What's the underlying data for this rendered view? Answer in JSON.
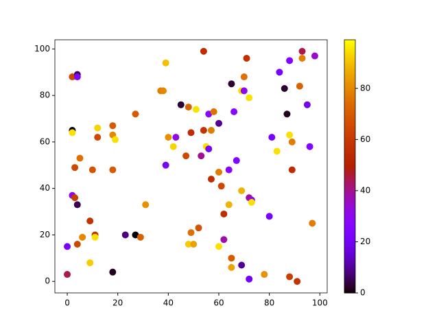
{
  "chart_data": {
    "type": "scatter",
    "colormap": "gnuplot",
    "x": [
      0,
      0,
      2,
      4,
      4,
      2,
      2,
      3,
      5,
      2,
      3,
      4,
      4,
      6,
      9,
      10,
      11,
      11,
      9,
      12,
      12,
      18,
      18,
      19,
      18,
      18,
      23,
      27,
      29,
      27,
      31,
      37,
      38,
      39,
      40,
      39,
      42,
      43,
      45,
      48,
      47,
      49,
      51,
      53,
      54,
      54,
      55,
      56,
      56,
      58,
      57,
      60,
      60,
      57,
      61,
      49,
      52,
      48,
      50,
      60,
      62,
      62,
      64,
      64,
      65,
      65,
      65,
      67,
      66,
      69,
      70,
      71,
      70,
      72,
      69,
      72,
      73,
      73,
      69,
      72,
      78,
      80,
      81,
      83,
      84,
      86,
      87,
      88,
      88,
      89,
      89,
      88,
      91,
      92,
      93,
      93,
      95,
      96,
      97,
      98
    ],
    "y": [
      3,
      15,
      88,
      89,
      88,
      65,
      64,
      49,
      53,
      37,
      36,
      33,
      16,
      19,
      26,
      48,
      20,
      19,
      8,
      66,
      62,
      67,
      63,
      61,
      48,
      4,
      20,
      20,
      19,
      72,
      33,
      82,
      82,
      94,
      62,
      50,
      58,
      62,
      76,
      75,
      54,
      64,
      74,
      54,
      65,
      99,
      58,
      57,
      72,
      73,
      65,
      68,
      47,
      44,
      41,
      21,
      23,
      16,
      16,
      15,
      29,
      18,
      33,
      48,
      10,
      6,
      85,
      52,
      73,
      82,
      88,
      96,
      82,
      79,
      39,
      36,
      35,
      34,
      7,
      1,
      3,
      28,
      62,
      56,
      90,
      83,
      72,
      95,
      63,
      60,
      48,
      2,
      0,
      84,
      96,
      99,
      76,
      58,
      25,
      97
    ],
    "c": [
      45,
      22,
      65,
      5,
      25,
      0,
      95,
      65,
      75,
      30,
      62,
      5,
      65,
      80,
      58,
      68,
      58,
      95,
      92,
      93,
      65,
      70,
      80,
      95,
      70,
      2,
      8,
      0,
      72,
      70,
      82,
      78,
      80,
      90,
      82,
      22,
      93,
      32,
      3,
      72,
      65,
      55,
      95,
      40,
      58,
      55,
      95,
      22,
      28,
      75,
      78,
      10,
      78,
      55,
      65,
      75,
      68,
      92,
      85,
      95,
      55,
      38,
      88,
      28,
      70,
      85,
      3,
      25,
      28,
      95,
      75,
      57,
      30,
      95,
      88,
      40,
      30,
      95,
      10,
      20,
      82,
      22,
      22,
      95,
      22,
      3,
      2,
      25,
      95,
      78,
      55,
      62,
      58,
      72,
      78,
      45,
      20,
      25,
      78,
      35
    ],
    "xlim": [
      -4.9,
      102.9
    ],
    "ylim": [
      -4.95,
      103.95
    ],
    "clim": [
      0,
      99
    ],
    "xticks": [
      0,
      20,
      40,
      60,
      80,
      100
    ],
    "yticks": [
      0,
      20,
      40,
      60,
      80,
      100
    ],
    "cticks": [
      0,
      20,
      40,
      60,
      80
    ]
  }
}
